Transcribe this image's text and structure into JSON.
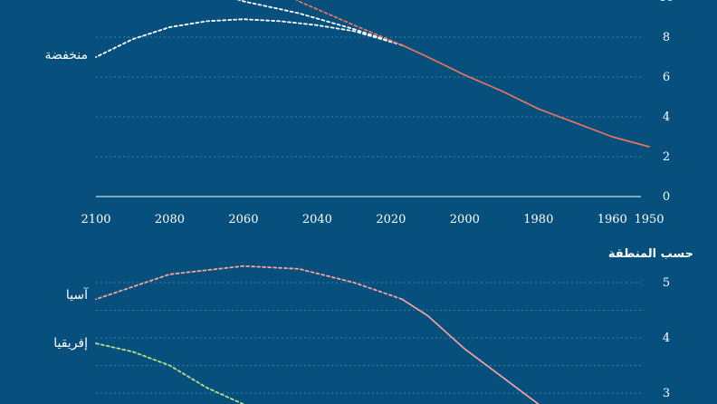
{
  "chart_data": [
    {
      "type": "line",
      "title": "",
      "xlabel": "",
      "ylabel": "",
      "x_ticks": [
        "2100",
        "2080",
        "2060",
        "2040",
        "2020",
        "2000",
        "1980",
        "1960",
        "1950"
      ],
      "y_ticks": [
        "0",
        "2",
        "4",
        "6",
        "8",
        "10"
      ],
      "xlim": [
        2100,
        1950
      ],
      "ylim": [
        0,
        10
      ],
      "grid": true,
      "colors": {
        "observed": "#e8735f",
        "projection": "#ffffff",
        "projection_high": "#e8735f"
      },
      "series": [
        {
          "name": "",
          "kind": "observed",
          "x": [
            1950,
            1960,
            1970,
            1980,
            1990,
            2000,
            2010,
            2017
          ],
          "y": [
            2.5,
            3.0,
            3.7,
            4.4,
            5.3,
            6.1,
            7.0,
            7.6
          ]
        },
        {
          "name": "منخفضة",
          "kind": "projection",
          "x": [
            2017,
            2030,
            2040,
            2050,
            2060,
            2070,
            2080,
            2090,
            2100
          ],
          "y": [
            7.6,
            8.3,
            8.6,
            8.8,
            8.9,
            8.8,
            8.5,
            7.9,
            7.0
          ]
        },
        {
          "name": "",
          "kind": "projection",
          "x": [
            2017,
            2030,
            2045,
            2060,
            2070
          ],
          "y": [
            7.6,
            8.4,
            9.2,
            9.8,
            10.4
          ]
        },
        {
          "name": "",
          "kind": "projection_high",
          "x": [
            2017,
            2030,
            2045,
            2050
          ],
          "y": [
            7.6,
            8.6,
            9.8,
            10.4
          ]
        }
      ]
    },
    {
      "type": "line",
      "title": "حسب المنطقة",
      "xlabel": "",
      "ylabel": "",
      "y_ticks": [
        "3",
        "4",
        "5"
      ],
      "xlim": [
        2100,
        1950
      ],
      "ylim": [
        2.8,
        5.45
      ],
      "grid": true,
      "colors": {
        "asia": "#f4a3a3",
        "africa": "#b8e08a"
      },
      "series": [
        {
          "name": "آسيا",
          "kind": "observed",
          "x": [
            2017,
            2010,
            2000,
            1990,
            1980
          ],
          "y": [
            4.7,
            4.4,
            3.8,
            3.3,
            2.8
          ]
        },
        {
          "name": "آسيا",
          "kind": "projection",
          "x": [
            2017,
            2030,
            2045,
            2060,
            2080,
            2100
          ],
          "y": [
            4.7,
            5.0,
            5.25,
            5.3,
            5.15,
            4.7
          ]
        },
        {
          "name": "إفريقيا",
          "kind": "projection",
          "x": [
            2100,
            2090,
            2080,
            2070,
            2065,
            2060
          ],
          "y": [
            3.9,
            3.75,
            3.5,
            3.1,
            2.95,
            2.8
          ]
        }
      ]
    }
  ]
}
